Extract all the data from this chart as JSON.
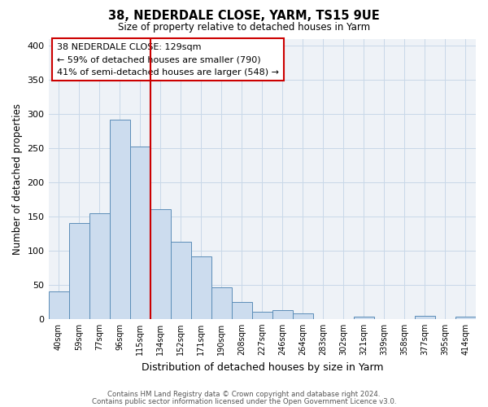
{
  "title": "38, NEDERDALE CLOSE, YARM, TS15 9UE",
  "subtitle": "Size of property relative to detached houses in Yarm",
  "xlabel": "Distribution of detached houses by size in Yarm",
  "ylabel": "Number of detached properties",
  "footnote1": "Contains HM Land Registry data © Crown copyright and database right 2024.",
  "footnote2": "Contains public sector information licensed under the Open Government Licence v3.0.",
  "bin_labels": [
    "40sqm",
    "59sqm",
    "77sqm",
    "96sqm",
    "115sqm",
    "134sqm",
    "152sqm",
    "171sqm",
    "190sqm",
    "208sqm",
    "227sqm",
    "246sqm",
    "264sqm",
    "283sqm",
    "302sqm",
    "321sqm",
    "339sqm",
    "358sqm",
    "377sqm",
    "395sqm",
    "414sqm"
  ],
  "bar_heights": [
    40,
    140,
    155,
    292,
    252,
    160,
    113,
    92,
    46,
    25,
    10,
    13,
    8,
    0,
    0,
    3,
    0,
    0,
    4,
    0,
    3
  ],
  "bar_color": "#ccdcee",
  "bar_edge_color": "#5b8db8",
  "ylim": [
    0,
    410
  ],
  "yticks": [
    0,
    50,
    100,
    150,
    200,
    250,
    300,
    350,
    400
  ],
  "vline_color": "#cc0000",
  "vline_x": 4.5,
  "annotation_title": "38 NEDERDALE CLOSE: 129sqm",
  "annotation_line1": "← 59% of detached houses are smaller (790)",
  "annotation_line2": "41% of semi-detached houses are larger (548) →",
  "grid_color": "#c8d8e8",
  "background_color": "#eef2f7",
  "ann_border_color": "#cc0000"
}
